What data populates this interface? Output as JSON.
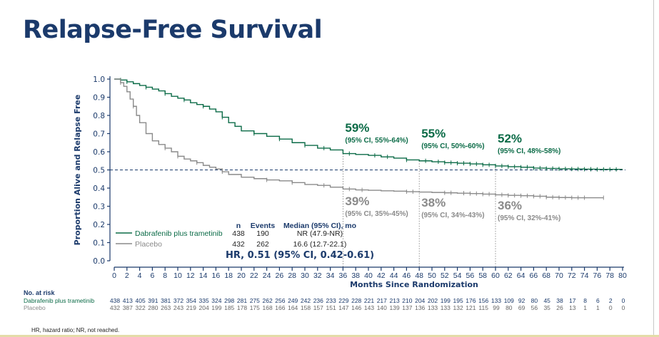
{
  "title": "Relapse-Free Survival",
  "footnote": "HR, hazard ratio; NR, not reached.",
  "colors": {
    "title": "#1b3a6b",
    "treatment": "#0b6b47",
    "placebo": "#8a8a8a",
    "axis": "#1b3a6b"
  },
  "chart_data": {
    "type": "line",
    "subtype": "kaplan-meier step curve",
    "xlabel": "Months Since Randomization",
    "ylabel": "Proportion Alive and Relapse Free",
    "xlim": [
      0,
      80
    ],
    "ylim": [
      0,
      1.0
    ],
    "xticks": [
      0,
      2,
      4,
      6,
      8,
      10,
      12,
      14,
      16,
      18,
      20,
      22,
      24,
      26,
      28,
      30,
      32,
      34,
      36,
      38,
      40,
      42,
      44,
      46,
      48,
      50,
      52,
      54,
      56,
      58,
      60,
      62,
      64,
      66,
      68,
      70,
      72,
      74,
      76,
      78,
      80
    ],
    "yticks": [
      "0.0",
      "0.1",
      "0.2",
      "0.3",
      "0.4",
      "0.5",
      "0.6",
      "0.7",
      "0.8",
      "0.9",
      "1.0"
    ],
    "reference_line_y": 0.5,
    "landmark_months": [
      36,
      48,
      60
    ],
    "series": [
      {
        "name": "Dabrafenib plus trametinib",
        "color": "#0b6b47",
        "x": [
          0,
          1,
          2,
          3,
          4,
          5,
          6,
          7,
          8,
          9,
          10,
          11,
          12,
          13,
          14,
          15,
          16,
          17,
          18,
          19,
          20,
          22,
          24,
          26,
          28,
          30,
          32,
          34,
          36,
          38,
          40,
          42,
          44,
          46,
          48,
          50,
          52,
          54,
          56,
          58,
          60,
          62,
          64,
          66,
          68,
          70,
          72,
          74,
          76,
          78,
          80
        ],
        "y": [
          1.0,
          0.995,
          0.985,
          0.975,
          0.965,
          0.955,
          0.945,
          0.935,
          0.92,
          0.905,
          0.895,
          0.885,
          0.87,
          0.86,
          0.85,
          0.835,
          0.82,
          0.79,
          0.76,
          0.74,
          0.715,
          0.7,
          0.685,
          0.67,
          0.65,
          0.635,
          0.62,
          0.61,
          0.59,
          0.585,
          0.58,
          0.572,
          0.565,
          0.555,
          0.55,
          0.545,
          0.54,
          0.537,
          0.533,
          0.528,
          0.522,
          0.518,
          0.515,
          0.51,
          0.508,
          0.506,
          0.505,
          0.504,
          0.503,
          0.503,
          0.503
        ],
        "censor_months": [
          1,
          2,
          5,
          8,
          11,
          14,
          17,
          22,
          26,
          30,
          33,
          37,
          41,
          43,
          46,
          49,
          51,
          52,
          53,
          54,
          55,
          56,
          57,
          58,
          59,
          60,
          61,
          62,
          63,
          64,
          65,
          66,
          67,
          68,
          69,
          70,
          71,
          72,
          73,
          74,
          75,
          76,
          77,
          78,
          79
        ],
        "landmarks": [
          {
            "month": 36,
            "percent": "59%",
            "ci": "(95% CI, 55%-64%)"
          },
          {
            "month": 48,
            "percent": "55%",
            "ci": "(95% CI, 50%-60%)"
          },
          {
            "month": 60,
            "percent": "52%",
            "ci": "(95% CI, 48%-58%)"
          }
        ],
        "n": "438",
        "events": "190",
        "median": "NR (47.9-NR)",
        "at_risk": [
          438,
          413,
          405,
          391,
          381,
          372,
          354,
          335,
          324,
          298,
          281,
          275,
          262,
          256,
          249,
          242,
          236,
          233,
          229,
          228,
          221,
          217,
          213,
          210,
          204,
          202,
          199,
          195,
          176,
          156,
          133,
          109,
          92,
          80,
          45,
          38,
          17,
          8,
          6,
          2,
          0
        ]
      },
      {
        "name": "Placebo",
        "color": "#8a8a8a",
        "x": [
          0,
          1,
          1.5,
          2,
          2.5,
          3,
          3.5,
          4,
          5,
          6,
          7,
          8,
          9,
          10,
          11,
          12,
          13,
          14,
          15,
          16,
          17,
          18,
          20,
          22,
          24,
          26,
          28,
          30,
          32,
          34,
          36,
          38,
          40,
          42,
          44,
          46,
          48,
          50,
          52,
          54,
          56,
          58,
          60,
          62,
          64,
          66,
          68,
          70,
          72,
          74,
          76,
          77
        ],
        "y": [
          1.0,
          0.98,
          0.96,
          0.93,
          0.89,
          0.85,
          0.8,
          0.76,
          0.7,
          0.66,
          0.64,
          0.62,
          0.6,
          0.575,
          0.56,
          0.55,
          0.54,
          0.525,
          0.515,
          0.505,
          0.49,
          0.475,
          0.46,
          0.452,
          0.445,
          0.44,
          0.43,
          0.42,
          0.415,
          0.405,
          0.395,
          0.39,
          0.388,
          0.385,
          0.383,
          0.38,
          0.378,
          0.376,
          0.374,
          0.372,
          0.37,
          0.367,
          0.363,
          0.36,
          0.358,
          0.355,
          0.35,
          0.348,
          0.347,
          0.347,
          0.347,
          0.347
        ],
        "censor_months": [
          1,
          3,
          8,
          10,
          13,
          17,
          24,
          28,
          33,
          37,
          39,
          46,
          47,
          52,
          53,
          55,
          56,
          57,
          58,
          59,
          60,
          61,
          62,
          63,
          64,
          65,
          66,
          67,
          68,
          69,
          70,
          71,
          72,
          73,
          74,
          77
        ],
        "landmarks": [
          {
            "month": 36,
            "percent": "39%",
            "ci": "(95% CI, 35%-45%)"
          },
          {
            "month": 48,
            "percent": "38%",
            "ci": "(95% CI, 34%-43%)"
          },
          {
            "month": 60,
            "percent": "36%",
            "ci": "(95% CI, 32%-41%)"
          }
        ],
        "n": "432",
        "events": "262",
        "median": "16.6 (12.7-22.1)",
        "at_risk": [
          432,
          387,
          322,
          280,
          263,
          243,
          219,
          204,
          199,
          185,
          178,
          175,
          168,
          166,
          164,
          158,
          157,
          151,
          147,
          146,
          143,
          140,
          139,
          137,
          136,
          133,
          133,
          132,
          121,
          115,
          99,
          80,
          69,
          56,
          35,
          26,
          13,
          1,
          1,
          0,
          0
        ]
      }
    ],
    "legend": {
      "placement": "bottom-left",
      "headers": {
        "n": "n",
        "events": "Events",
        "median": "Median (95% CI), mo"
      },
      "hr_text": "HR, 0.51 (95% CI, 0.42-0.61)"
    },
    "at_risk_label": "No. at risk"
  }
}
